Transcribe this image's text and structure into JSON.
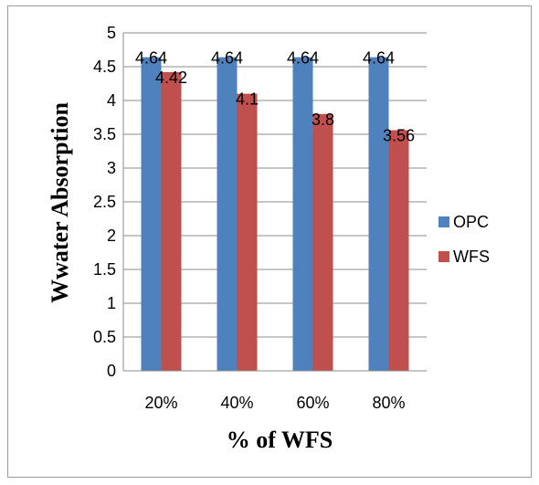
{
  "chart_data": {
    "type": "bar",
    "categories": [
      "20%",
      "40%",
      "60%",
      "80%"
    ],
    "series": [
      {
        "name": "OPC",
        "values": [
          4.64,
          4.64,
          4.64,
          4.64
        ],
        "labels": [
          "4.64",
          "4.64",
          "4.64",
          "4.64"
        ],
        "color": "#4F81BD"
      },
      {
        "name": "WFS",
        "values": [
          4.42,
          4.1,
          3.8,
          3.56
        ],
        "labels": [
          "4.42",
          "4.1",
          "3.8",
          "3.56"
        ],
        "color": "#C0504D"
      }
    ],
    "title": "",
    "xlabel": "% of WFS",
    "ylabel": "Wwater Absorption",
    "ylim": [
      0,
      5
    ],
    "yticks": [
      "0",
      "0.5",
      "1",
      "1.5",
      "2",
      "2.5",
      "3",
      "3.5",
      "4",
      "4.5",
      "5"
    ],
    "yticks_values": [
      0,
      0.5,
      1,
      1.5,
      2,
      2.5,
      3,
      3.5,
      4,
      4.5,
      5
    ],
    "grid": true,
    "legend": "right"
  }
}
